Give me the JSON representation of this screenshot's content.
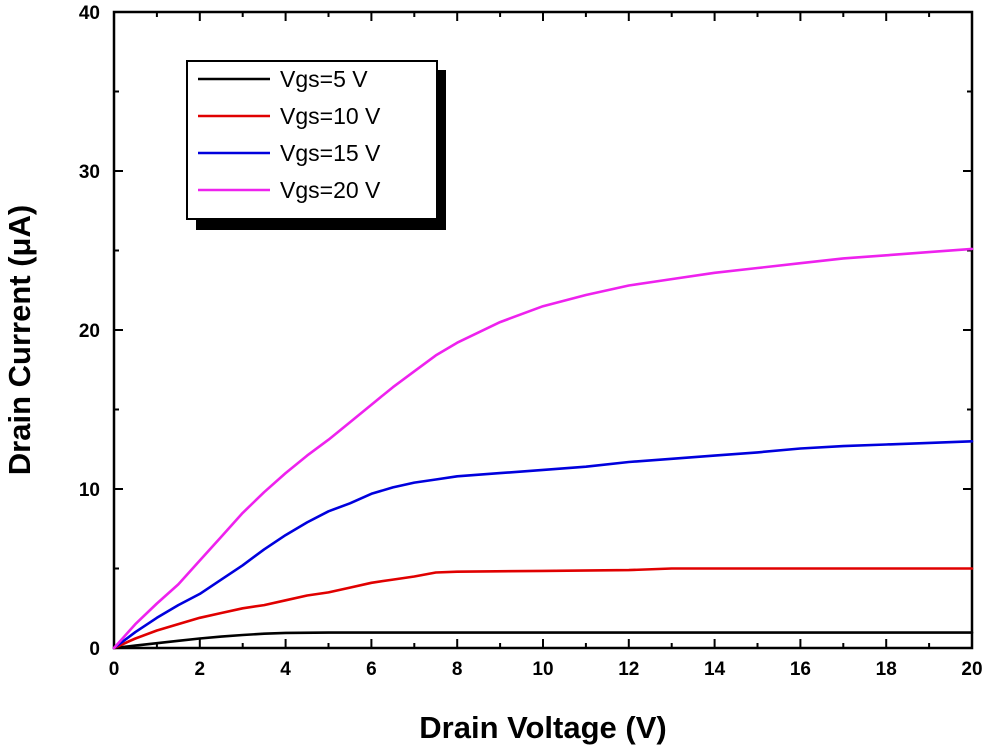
{
  "chart_data": {
    "type": "line",
    "title": "",
    "xlabel": "Drain Voltage (V)",
    "ylabel": "Drain Current (μA)",
    "xlim": [
      0,
      20
    ],
    "ylim": [
      0,
      40
    ],
    "xticks": [
      0,
      2,
      4,
      6,
      8,
      10,
      12,
      14,
      16,
      18,
      20
    ],
    "yticks": [
      0,
      10,
      20,
      30,
      40
    ],
    "grid": false,
    "legend_position": "top-left",
    "series": [
      {
        "name": "Vgs=5 V",
        "color": "#000000",
        "x": [
          0,
          0.5,
          1,
          1.5,
          2,
          2.5,
          3,
          3.5,
          4,
          5,
          6,
          8,
          10,
          12,
          14,
          16,
          18,
          20
        ],
        "y": [
          0,
          0.15,
          0.3,
          0.45,
          0.6,
          0.72,
          0.82,
          0.9,
          0.95,
          0.97,
          0.97,
          0.97,
          0.97,
          0.97,
          0.97,
          0.97,
          0.97,
          0.97
        ]
      },
      {
        "name": "Vgs=10 V",
        "color": "#e00000",
        "x": [
          0,
          0.5,
          1,
          1.5,
          2,
          2.5,
          3,
          3.5,
          4,
          4.5,
          5,
          5.5,
          6,
          6.5,
          7,
          7.5,
          8,
          10,
          12,
          13,
          14,
          16,
          18,
          20
        ],
        "y": [
          0,
          0.6,
          1.1,
          1.5,
          1.9,
          2.2,
          2.5,
          2.7,
          3.0,
          3.3,
          3.5,
          3.8,
          4.1,
          4.3,
          4.5,
          4.75,
          4.8,
          4.85,
          4.9,
          5.0,
          5.0,
          5.0,
          5.0,
          5.0
        ]
      },
      {
        "name": "Vgs=15 V",
        "color": "#0000dd",
        "x": [
          0,
          0.5,
          1,
          1.5,
          2,
          2.5,
          3,
          3.5,
          4,
          4.5,
          5,
          5.5,
          6,
          6.5,
          7,
          7.5,
          8,
          9,
          10,
          11,
          12,
          13,
          14,
          15,
          16,
          17,
          18,
          19,
          20
        ],
        "y": [
          0,
          1.0,
          1.9,
          2.7,
          3.4,
          4.3,
          5.2,
          6.2,
          7.1,
          7.9,
          8.6,
          9.1,
          9.7,
          10.1,
          10.4,
          10.6,
          10.8,
          11.0,
          11.2,
          11.4,
          11.7,
          11.9,
          12.1,
          12.3,
          12.55,
          12.7,
          12.8,
          12.9,
          13.0
        ]
      },
      {
        "name": "Vgs=20 V",
        "color": "#ee22ee",
        "x": [
          0,
          0.5,
          1,
          1.5,
          2,
          2.5,
          3,
          3.5,
          4,
          4.5,
          5,
          5.5,
          6,
          6.5,
          7,
          7.5,
          8,
          9,
          10,
          11,
          12,
          13,
          14,
          15,
          16,
          17,
          18,
          19,
          20
        ],
        "y": [
          0,
          1.5,
          2.8,
          4.0,
          5.5,
          7.0,
          8.5,
          9.8,
          11.0,
          12.1,
          13.1,
          14.2,
          15.3,
          16.4,
          17.4,
          18.4,
          19.2,
          20.5,
          21.5,
          22.2,
          22.8,
          23.2,
          23.6,
          23.9,
          24.2,
          24.5,
          24.7,
          24.9,
          25.1
        ]
      }
    ]
  }
}
